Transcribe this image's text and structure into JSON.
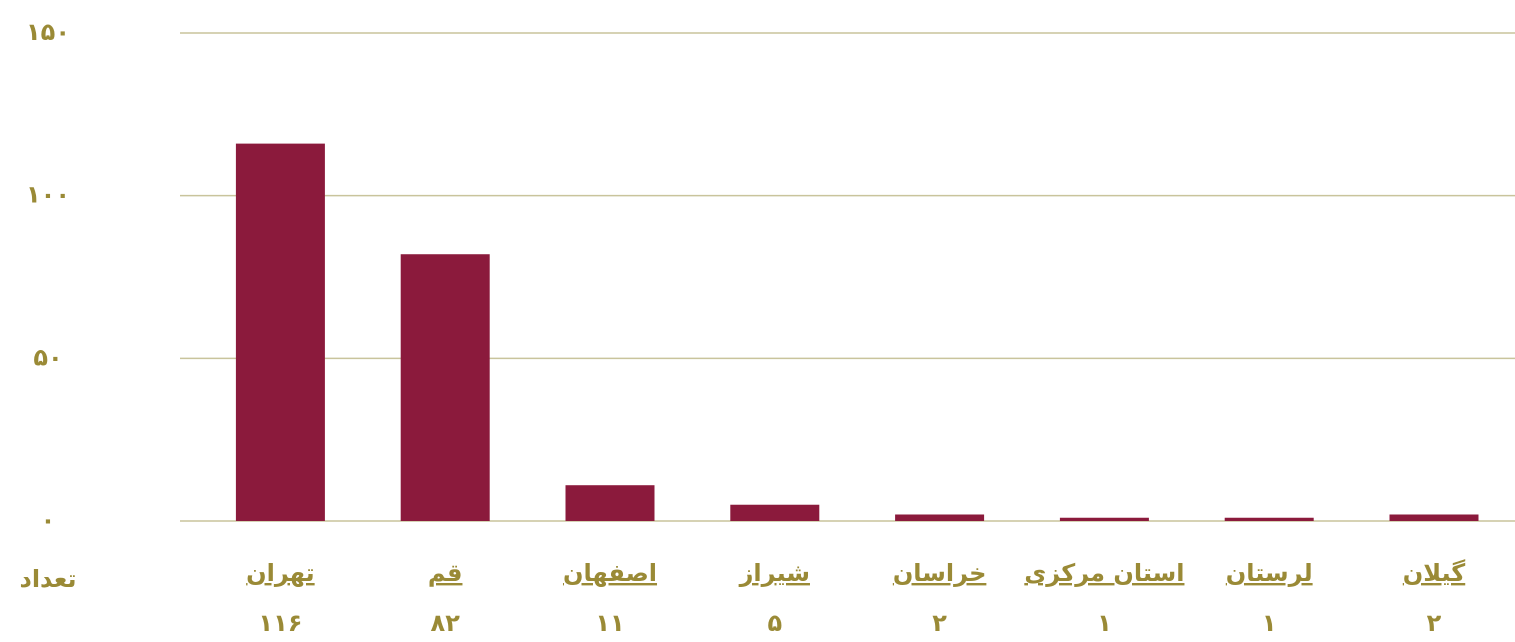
{
  "chart_data": {
    "type": "bar",
    "y_label": "تعداد",
    "categories": [
      "تهران",
      "قم",
      "اصفهان",
      "شیراز",
      "خراسان",
      "استان مرکزی",
      "لرستان",
      "گیلان"
    ],
    "values": [
      116,
      82,
      11,
      5,
      2,
      1,
      1,
      2
    ],
    "value_labels": [
      "۱۱۶",
      "۸۲",
      "۱۱",
      "۵",
      "۲",
      "۱",
      "۱",
      "۲"
    ],
    "color": "#8b1a3c",
    "ylim": [
      0,
      150
    ],
    "yticks": [
      {
        "value": 0,
        "label": "۰"
      },
      {
        "value": 50,
        "label": "۵۰"
      },
      {
        "value": 100,
        "label": "۱۰۰"
      },
      {
        "value": 150,
        "label": "۱۵۰"
      }
    ],
    "grid": true
  }
}
